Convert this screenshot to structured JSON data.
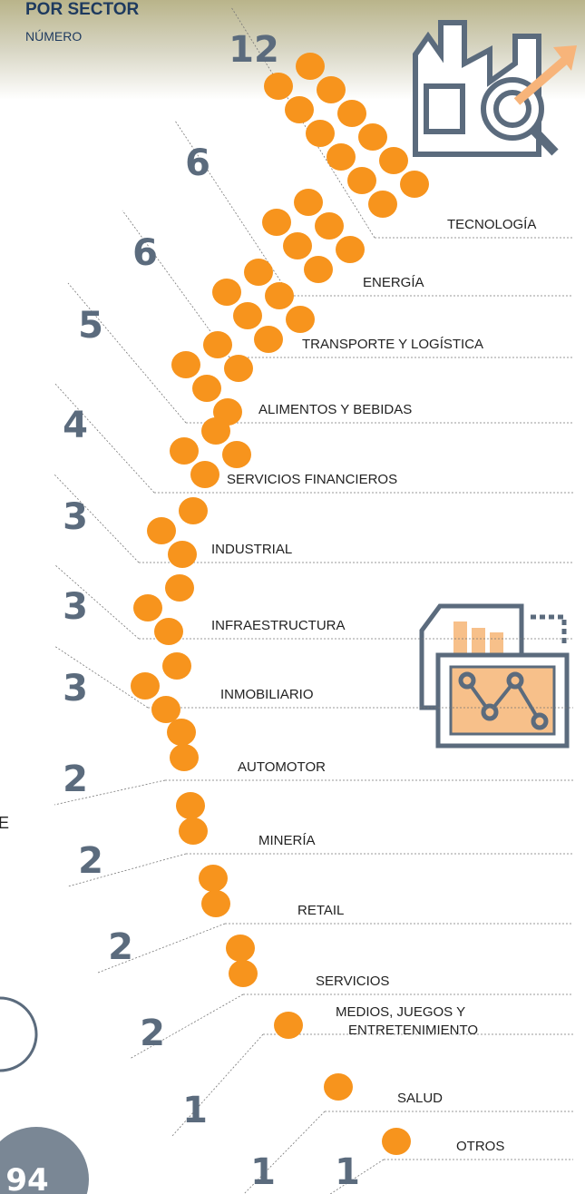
{
  "chart_data": {
    "type": "pictogram",
    "title": "POR SECTOR",
    "subtitle": "NÚMERO",
    "categories": [
      "TECNOLOGÍA",
      "ENERGÍA",
      "TRANSPORTE Y LOGÍSTICA",
      "ALIMENTOS Y BEBIDAS",
      "SERVICIOS FINANCIEROS",
      "INDUSTRIAL",
      "INFRAESTRUCTURA",
      "INMOBILIARIO",
      "AUTOMOTOR",
      "MINERÍA",
      "RETAIL",
      "SERVICIOS",
      "MEDIOS, JUEGOS Y ENTRETENIMIENTO",
      "SALUD",
      "OTROS"
    ],
    "values": [
      12,
      6,
      6,
      5,
      4,
      3,
      3,
      3,
      2,
      2,
      2,
      2,
      1,
      1,
      1
    ],
    "color": "#f7941d"
  },
  "page_number": "94",
  "fragment": "E"
}
